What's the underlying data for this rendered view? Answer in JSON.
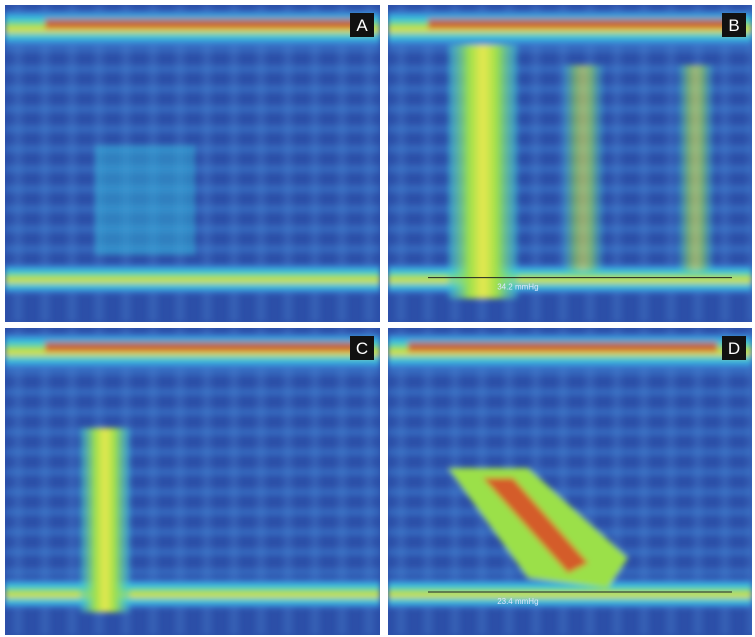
{
  "panels": [
    {
      "label": "A"
    },
    {
      "label": "B",
      "measure": "34.2 mmHg"
    },
    {
      "label": "C"
    },
    {
      "label": "D",
      "measure": "23.4 mmHg"
    }
  ]
}
